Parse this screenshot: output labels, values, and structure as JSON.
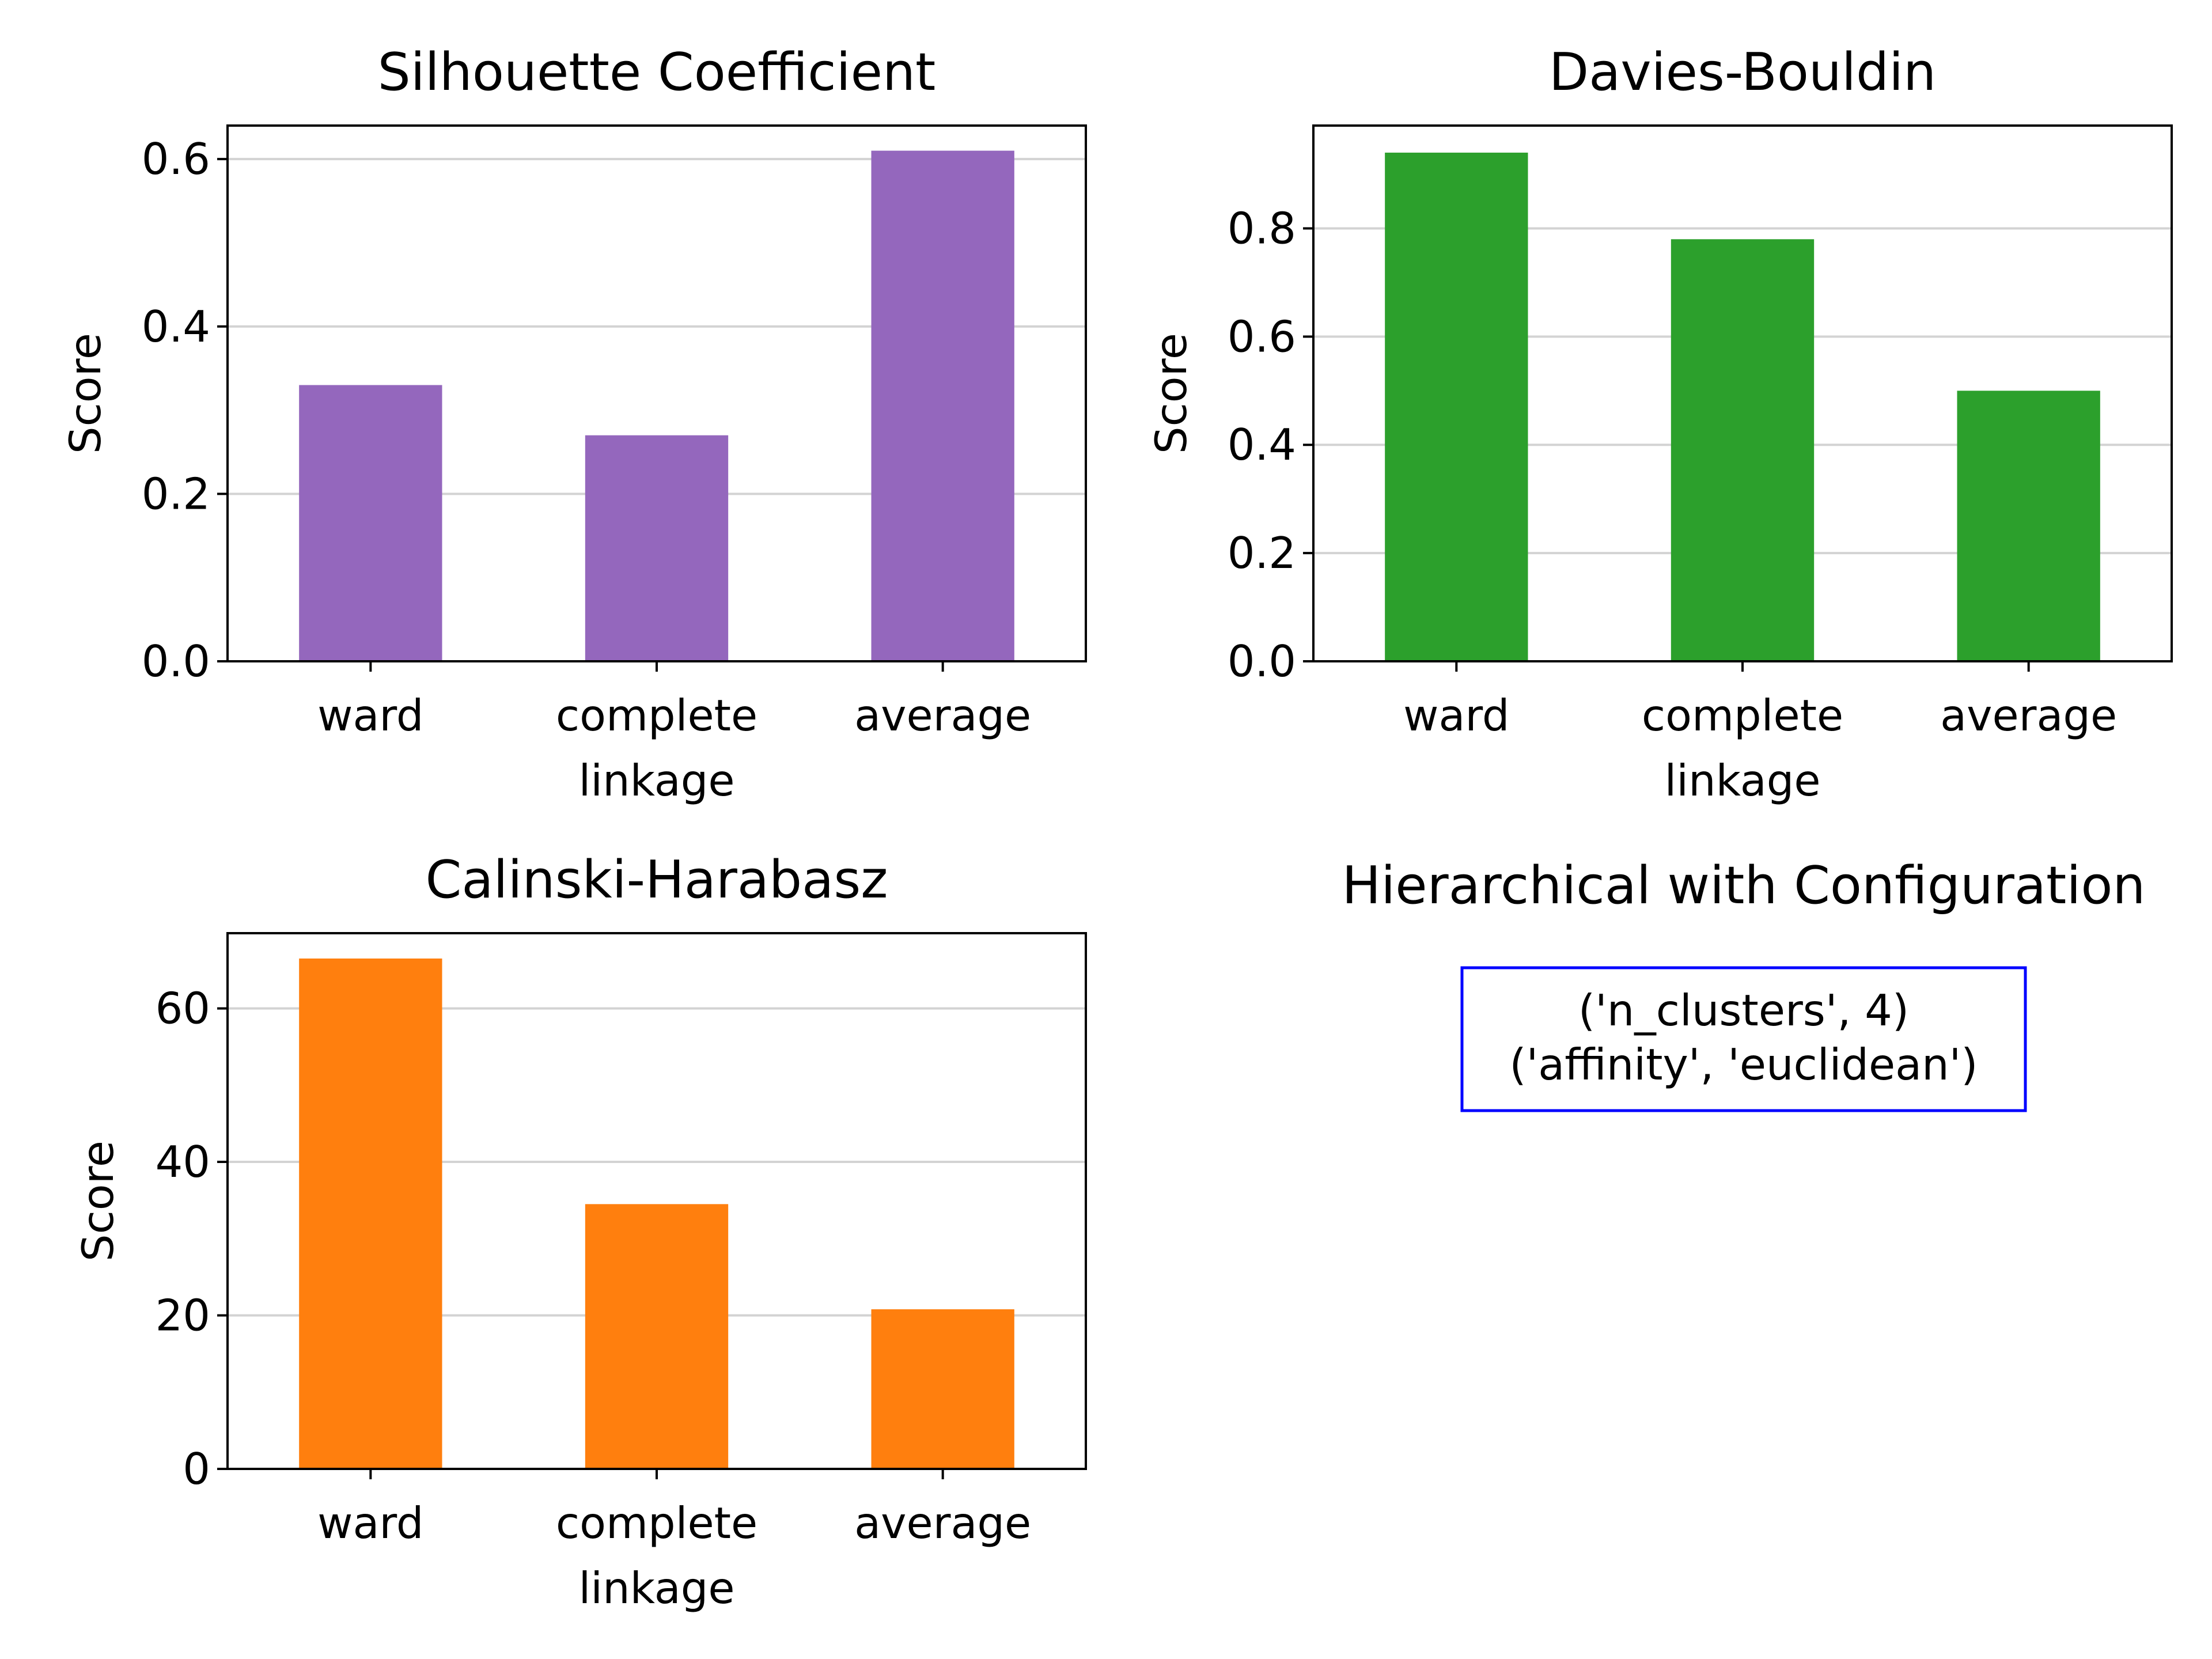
{
  "chart_data": [
    {
      "type": "bar",
      "title": "Silhouette Coefficient",
      "xlabel": "linkage",
      "ylabel": "Score",
      "categories": [
        "ward",
        "complete",
        "average"
      ],
      "values": [
        0.33,
        0.27,
        0.61
      ],
      "ylim": [
        0,
        0.64
      ],
      "yticks": [
        "0.0",
        "0.2",
        "0.4",
        "0.6"
      ],
      "ytick_values": [
        0,
        0.2,
        0.4,
        0.6
      ],
      "color": "#9467bd",
      "grid": "y"
    },
    {
      "type": "bar",
      "title": "Davies-Bouldin",
      "xlabel": "linkage",
      "ylabel": "Score",
      "categories": [
        "ward",
        "complete",
        "average"
      ],
      "values": [
        0.94,
        0.78,
        0.5
      ],
      "ylim": [
        0,
        0.99
      ],
      "yticks": [
        "0.0",
        "0.2",
        "0.4",
        "0.6",
        "0.8"
      ],
      "ytick_values": [
        0,
        0.2,
        0.4,
        0.6,
        0.8
      ],
      "color": "#2ca02c",
      "grid": "y"
    },
    {
      "type": "bar",
      "title": "Calinski-Harabasz",
      "xlabel": "linkage",
      "ylabel": "Score",
      "categories": [
        "ward",
        "complete",
        "average"
      ],
      "values": [
        66.5,
        34.5,
        20.8
      ],
      "ylim": [
        0,
        69.8
      ],
      "yticks": [
        "0",
        "20",
        "40",
        "60"
      ],
      "ytick_values": [
        0,
        20,
        40,
        60
      ],
      "color": "#ff7f0e",
      "grid": "y"
    }
  ],
  "config_panel": {
    "title": "Hierarchical with Configuration",
    "lines": [
      "('n_clusters', 4)",
      "('affinity', 'euclidean')"
    ],
    "border_color": "#0000ff"
  }
}
